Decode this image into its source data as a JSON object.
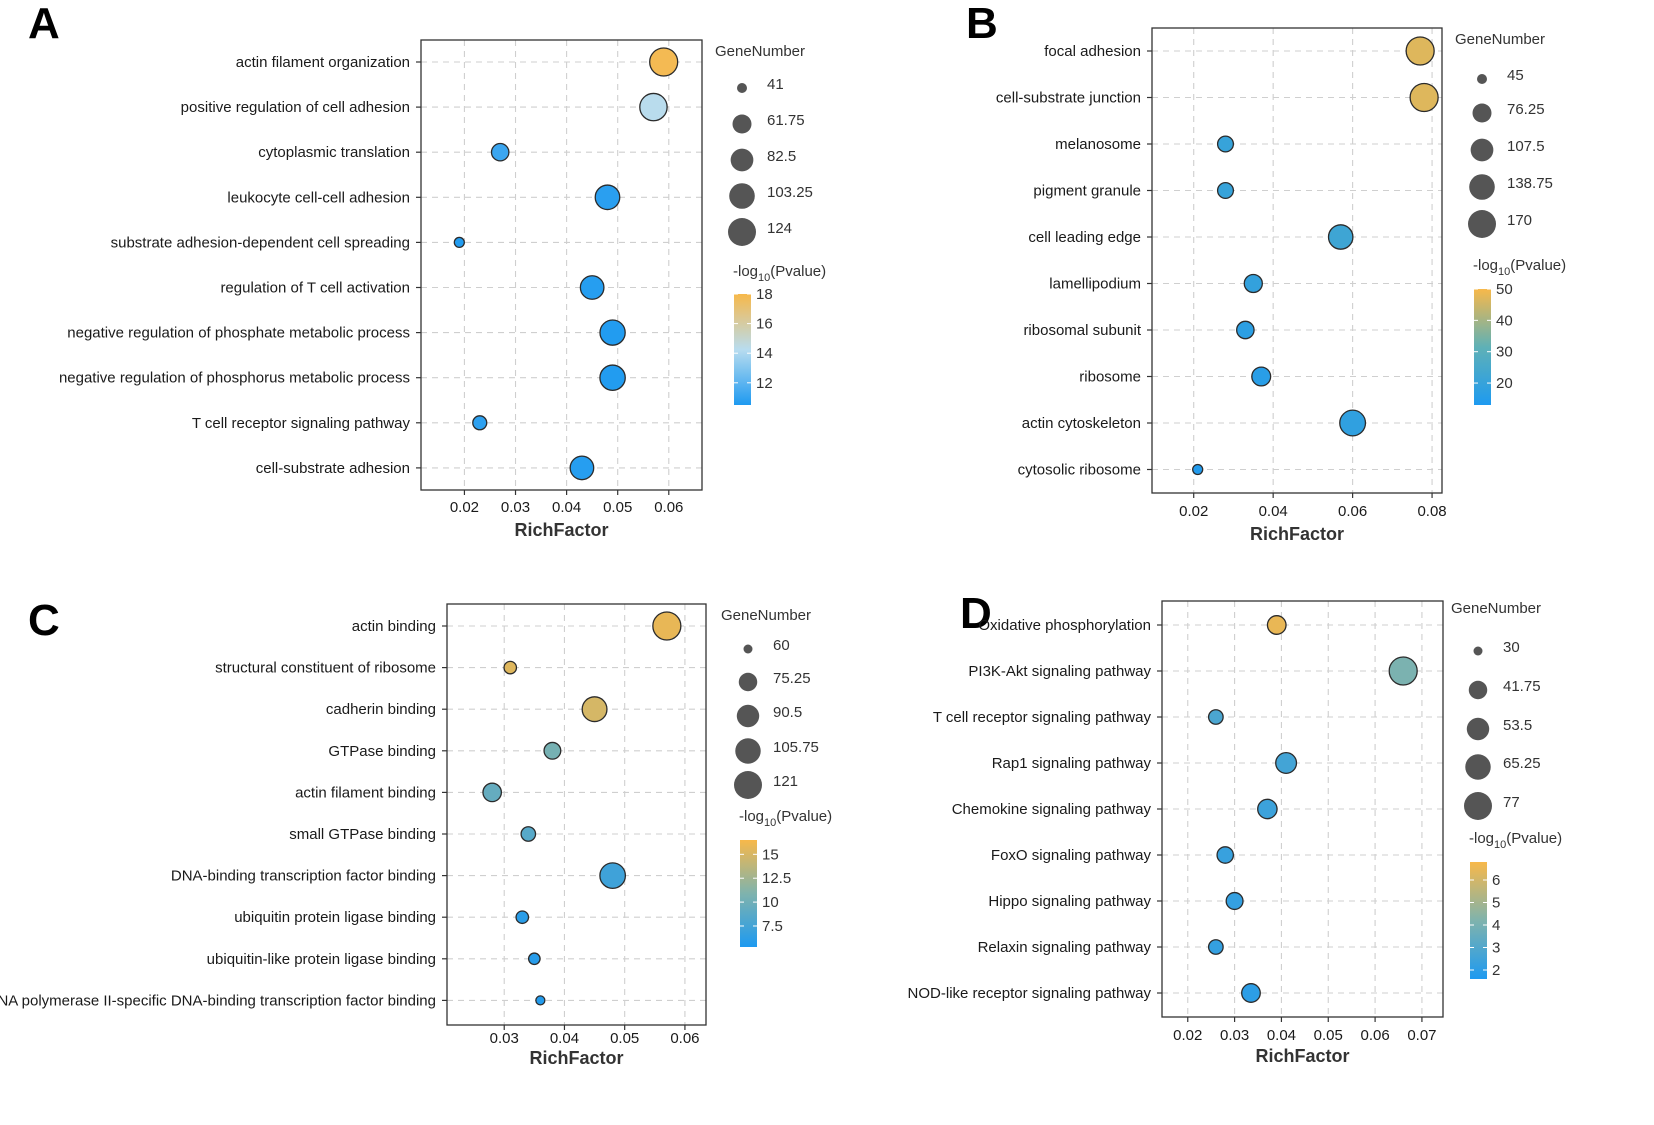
{
  "chart_data": [
    {
      "panel": "A",
      "type": "scatter",
      "xlabel": "RichFactor",
      "x_ticks": [
        "0.02",
        "0.03",
        "0.04",
        "0.05",
        "0.06"
      ],
      "xlim": [
        0.0115,
        0.0665
      ],
      "categories": [
        "actin filament organization",
        "positive regulation of cell adhesion",
        "cytoplasmic translation",
        "leukocyte cell-cell adhesion",
        "substrate adhesion-dependent cell spreading",
        "regulation of T cell activation",
        "negative regulation of phosphate metabolic process",
        "negative regulation of phosphorus metabolic process",
        "T cell receptor signaling pathway",
        "cell-substrate adhesion"
      ],
      "rich_factor": [
        0.059,
        0.057,
        0.027,
        0.048,
        0.019,
        0.045,
        0.049,
        0.049,
        0.023,
        0.043
      ],
      "gene_number": [
        124,
        118,
        55,
        95,
        41,
        88,
        100,
        101,
        45,
        88
      ],
      "neg_log10_pvalue": [
        17.8,
        14.3,
        11.2,
        10.8,
        10.6,
        10.7,
        10.6,
        10.6,
        10.9,
        10.7
      ],
      "size_legend": {
        "title": "GeneNumber",
        "labels": [
          "41",
          "61.75",
          "82.5",
          "103.25",
          "124"
        ],
        "values": [
          41,
          61.75,
          82.5,
          103.25,
          124
        ]
      },
      "color_legend": {
        "title_main": "-log",
        "title_sub": "10",
        "title_end": "(Pvalue)",
        "ticks": [
          "18",
          "16",
          "14",
          "12"
        ],
        "tick_values": [
          18,
          16,
          14,
          12
        ],
        "range": [
          10.5,
          18
        ]
      }
    },
    {
      "panel": "B",
      "type": "scatter",
      "xlabel": "RichFactor",
      "x_ticks": [
        "0.02",
        "0.04",
        "0.06",
        "0.08"
      ],
      "xlim": [
        0.0095,
        0.0825
      ],
      "categories": [
        "focal adhesion",
        "cell-substrate junction",
        "melanosome",
        "pigment granule",
        "cell leading edge",
        "lamellipodium",
        "ribosomal subunit",
        "ribosome",
        "actin cytoskeleton",
        "cytosolic ribosome"
      ],
      "rich_factor": [
        0.077,
        0.078,
        0.028,
        0.028,
        0.057,
        0.035,
        0.033,
        0.037,
        0.06,
        0.021
      ],
      "gene_number": [
        170,
        170,
        58,
        58,
        125,
        70,
        66,
        75,
        140,
        45
      ],
      "neg_log10_pvalue": [
        47,
        47,
        20,
        20,
        22,
        19,
        17,
        16,
        18,
        14
      ],
      "size_legend": {
        "title": "GeneNumber",
        "labels": [
          "45",
          "76.25",
          "107.5",
          "138.75",
          "170"
        ],
        "values": [
          45,
          76.25,
          107.5,
          138.75,
          170
        ]
      },
      "color_legend": {
        "title_main": "-log",
        "title_sub": "10",
        "title_end": "(Pvalue)",
        "ticks": [
          "50",
          "40",
          "30",
          "20"
        ],
        "tick_values": [
          50,
          40,
          30,
          20
        ],
        "range": [
          13,
          50
        ]
      }
    },
    {
      "panel": "C",
      "type": "scatter",
      "xlabel": "RichFactor",
      "x_ticks": [
        "0.03",
        "0.04",
        "0.05",
        "0.06"
      ],
      "xlim": [
        0.0205,
        0.0635
      ],
      "categories": [
        "actin binding",
        "structural constituent of ribosome",
        "cadherin binding",
        "GTPase binding",
        "actin filament binding",
        "small GTPase binding",
        "DNA-binding transcription factor binding",
        "ubiquitin protein ligase binding",
        "ubiquitin-like protein ligase binding",
        "RNA polymerase II-specific DNA-binding transcription factor binding"
      ],
      "rich_factor": [
        0.057,
        0.031,
        0.045,
        0.038,
        0.028,
        0.034,
        0.048,
        0.033,
        0.035,
        0.036
      ],
      "gene_number": [
        121,
        62,
        102,
        70,
        75,
        65,
        106,
        62,
        61,
        60
      ],
      "neg_log10_pvalue": [
        15.8,
        15.4,
        14.9,
        10.4,
        9.4,
        8.6,
        7.2,
        6.0,
        5.8,
        5.6
      ],
      "size_legend": {
        "title": "GeneNumber",
        "labels": [
          "60",
          "75.25",
          "90.5",
          "105.75",
          "121"
        ],
        "values": [
          60,
          75.25,
          90.5,
          105.75,
          121
        ]
      },
      "color_legend": {
        "title_main": "-log",
        "title_sub": "10",
        "title_end": "(Pvalue)",
        "ticks": [
          "15",
          "12.5",
          "10",
          "7.5"
        ],
        "tick_values": [
          15,
          12.5,
          10,
          7.5
        ],
        "range": [
          5.3,
          16.5
        ]
      }
    },
    {
      "panel": "D",
      "type": "scatter",
      "xlabel": "RichFactor",
      "x_ticks": [
        "0.02",
        "0.03",
        "0.04",
        "0.05",
        "0.06",
        "0.07"
      ],
      "xlim": [
        0.0145,
        0.0745
      ],
      "categories": [
        "Oxidative phosphorylation",
        "PI3K-Akt signaling pathway",
        "T cell receptor signaling pathway",
        "Rap1 signaling pathway",
        "Chemokine signaling pathway",
        "FoxO signaling pathway",
        "Hippo signaling pathway",
        "Relaxin signaling pathway",
        "NOD-like receptor signaling pathway"
      ],
      "rich_factor": [
        0.039,
        0.066,
        0.026,
        0.041,
        0.037,
        0.028,
        0.03,
        0.026,
        0.0335
      ],
      "gene_number": [
        42,
        77,
        34,
        48,
        44,
        37,
        38,
        34,
        42
      ],
      "neg_log10_pvalue": [
        6.5,
        4.1,
        2.8,
        2.6,
        2.4,
        2.3,
        2.2,
        2.2,
        2.0
      ],
      "size_legend": {
        "title": "GeneNumber",
        "labels": [
          "30",
          "41.75",
          "53.5",
          "65.25",
          "77"
        ],
        "values": [
          30,
          41.75,
          53.5,
          65.25,
          77
        ]
      },
      "color_legend": {
        "title_main": "-log",
        "title_sub": "10",
        "title_end": "(Pvalue)",
        "ticks": [
          "6",
          "5",
          "4",
          "3",
          "2"
        ],
        "tick_values": [
          6,
          5,
          4,
          3,
          2
        ],
        "range": [
          1.6,
          6.8
        ]
      }
    }
  ]
}
